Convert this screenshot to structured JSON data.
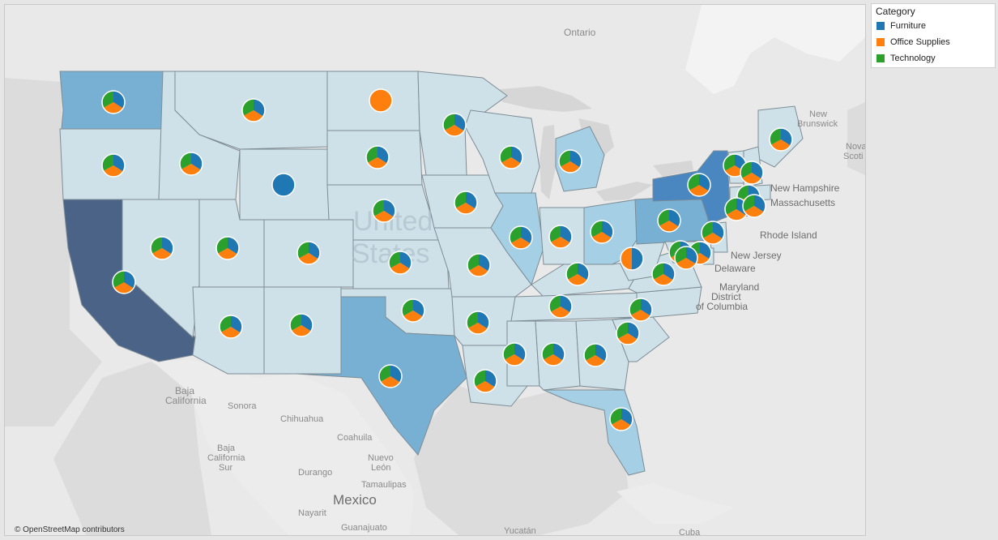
{
  "legend": {
    "title": "Category",
    "items": [
      {
        "label": "Furniture",
        "color": "#1f77b4"
      },
      {
        "label": "Office Supplies",
        "color": "#ff7f0e"
      },
      {
        "label": "Technology",
        "color": "#2ca02c"
      }
    ]
  },
  "attribution": "© OpenStreetMap contributors",
  "place_labels": {
    "ontario": "Ontario",
    "new_brunswick_1": "New",
    "new_brunswick_2": "Brunswick",
    "nova_scotia_1": "Nova",
    "nova_scotia_2": "Scoti",
    "united": "United",
    "states": "States",
    "new_hampshire": "New Hampshire",
    "massachusetts": "Massachusetts",
    "rhode_island": "Rhode Island",
    "new_jersey": "New Jersey",
    "delaware": "Delaware",
    "maryland": "Maryland",
    "district": "District",
    "of_columbia": "of Columbia",
    "baja_california_1": "Baja",
    "baja_california_2": "California",
    "sonora": "Sonora",
    "chihuahua": "Chihuahua",
    "coahuila": "Coahuila",
    "nuevo_leon_1": "Nuevo",
    "nuevo_leon_2": "León",
    "baja_california_sur_1": "Baja",
    "baja_california_sur_2": "California",
    "baja_california_sur_3": "Sur",
    "durango": "Durango",
    "tamaulipas": "Tamaulipas",
    "mexico": "Mexico",
    "nayarit": "Nayarit",
    "guanajuato": "Guanajuato",
    "yucatan": "Yucatán",
    "cuba": "Cuba"
  },
  "fill_scale": {
    "light": "#cfe1e8",
    "low": "#bad6e2",
    "mid": "#a5cfe4",
    "high": "#78b0d3",
    "very_high": "#4a86c0",
    "max": "#4b6387"
  },
  "state_fill_levels": {
    "California": "max",
    "New York": "very_high",
    "Texas": "high",
    "Washington": "high",
    "Pennsylvania": "high",
    "Illinois": "mid",
    "Ohio": "mid",
    "Michigan": "mid",
    "Florida": "mid"
  },
  "pies": [
    {
      "state": "Washington",
      "slices": [
        34,
        33,
        33
      ]
    },
    {
      "state": "Oregon",
      "slices": [
        34,
        33,
        33
      ]
    },
    {
      "state": "California",
      "slices": [
        34,
        33,
        33
      ]
    },
    {
      "state": "Idaho",
      "slices": [
        34,
        33,
        33
      ]
    },
    {
      "state": "Montana",
      "slices": [
        34,
        33,
        33
      ]
    },
    {
      "state": "Wyoming",
      "slices": [
        100,
        0,
        0
      ]
    },
    {
      "state": "Nevada",
      "slices": [
        34,
        33,
        33
      ]
    },
    {
      "state": "Utah",
      "slices": [
        34,
        33,
        33
      ]
    },
    {
      "state": "Colorado",
      "slices": [
        34,
        33,
        33
      ]
    },
    {
      "state": "Arizona",
      "slices": [
        34,
        33,
        33
      ]
    },
    {
      "state": "New Mexico",
      "slices": [
        34,
        33,
        33
      ]
    },
    {
      "state": "North Dakota",
      "slices": [
        0,
        100,
        0
      ]
    },
    {
      "state": "South Dakota",
      "slices": [
        34,
        33,
        33
      ]
    },
    {
      "state": "Nebraska",
      "slices": [
        34,
        33,
        33
      ]
    },
    {
      "state": "Kansas",
      "slices": [
        34,
        33,
        33
      ]
    },
    {
      "state": "Oklahoma",
      "slices": [
        34,
        33,
        33
      ]
    },
    {
      "state": "Texas",
      "slices": [
        34,
        33,
        33
      ]
    },
    {
      "state": "Minnesota",
      "slices": [
        34,
        33,
        33
      ]
    },
    {
      "state": "Iowa",
      "slices": [
        34,
        33,
        33
      ]
    },
    {
      "state": "Missouri",
      "slices": [
        34,
        33,
        33
      ]
    },
    {
      "state": "Arkansas",
      "slices": [
        34,
        33,
        33
      ]
    },
    {
      "state": "Louisiana",
      "slices": [
        34,
        33,
        33
      ]
    },
    {
      "state": "Wisconsin",
      "slices": [
        34,
        33,
        33
      ]
    },
    {
      "state": "Illinois",
      "slices": [
        34,
        33,
        33
      ]
    },
    {
      "state": "Michigan",
      "slices": [
        34,
        33,
        33
      ]
    },
    {
      "state": "Indiana",
      "slices": [
        34,
        33,
        33
      ]
    },
    {
      "state": "Ohio",
      "slices": [
        34,
        33,
        33
      ]
    },
    {
      "state": "Kentucky",
      "slices": [
        34,
        33,
        33
      ]
    },
    {
      "state": "Tennessee",
      "slices": [
        34,
        33,
        33
      ]
    },
    {
      "state": "Mississippi",
      "slices": [
        34,
        33,
        33
      ]
    },
    {
      "state": "Alabama",
      "slices": [
        34,
        33,
        33
      ]
    },
    {
      "state": "Georgia",
      "slices": [
        34,
        33,
        33
      ]
    },
    {
      "state": "Florida",
      "slices": [
        34,
        33,
        33
      ]
    },
    {
      "state": "South Carolina",
      "slices": [
        34,
        33,
        33
      ]
    },
    {
      "state": "North Carolina",
      "slices": [
        34,
        33,
        33
      ]
    },
    {
      "state": "Virginia",
      "slices": [
        34,
        33,
        33
      ]
    },
    {
      "state": "West Virginia",
      "slices": [
        50,
        50,
        0
      ]
    },
    {
      "state": "Pennsylvania",
      "slices": [
        34,
        33,
        33
      ]
    },
    {
      "state": "New York",
      "slices": [
        34,
        33,
        33
      ]
    },
    {
      "state": "Maine",
      "slices": [
        34,
        33,
        33
      ]
    },
    {
      "state": "Vermont",
      "slices": [
        34,
        33,
        33
      ]
    },
    {
      "state": "New Hampshire",
      "slices": [
        34,
        33,
        33
      ]
    },
    {
      "state": "Massachusetts",
      "slices": [
        34,
        33,
        33
      ]
    },
    {
      "state": "Connecticut",
      "slices": [
        34,
        33,
        33
      ]
    },
    {
      "state": "Rhode Island",
      "slices": [
        34,
        33,
        33
      ]
    },
    {
      "state": "New Jersey",
      "slices": [
        34,
        33,
        33
      ]
    },
    {
      "state": "Delaware",
      "slices": [
        34,
        33,
        33
      ]
    },
    {
      "state": "Maryland",
      "slices": [
        34,
        33,
        33
      ]
    },
    {
      "state": "District of Columbia",
      "slices": [
        34,
        33,
        33
      ]
    }
  ]
}
